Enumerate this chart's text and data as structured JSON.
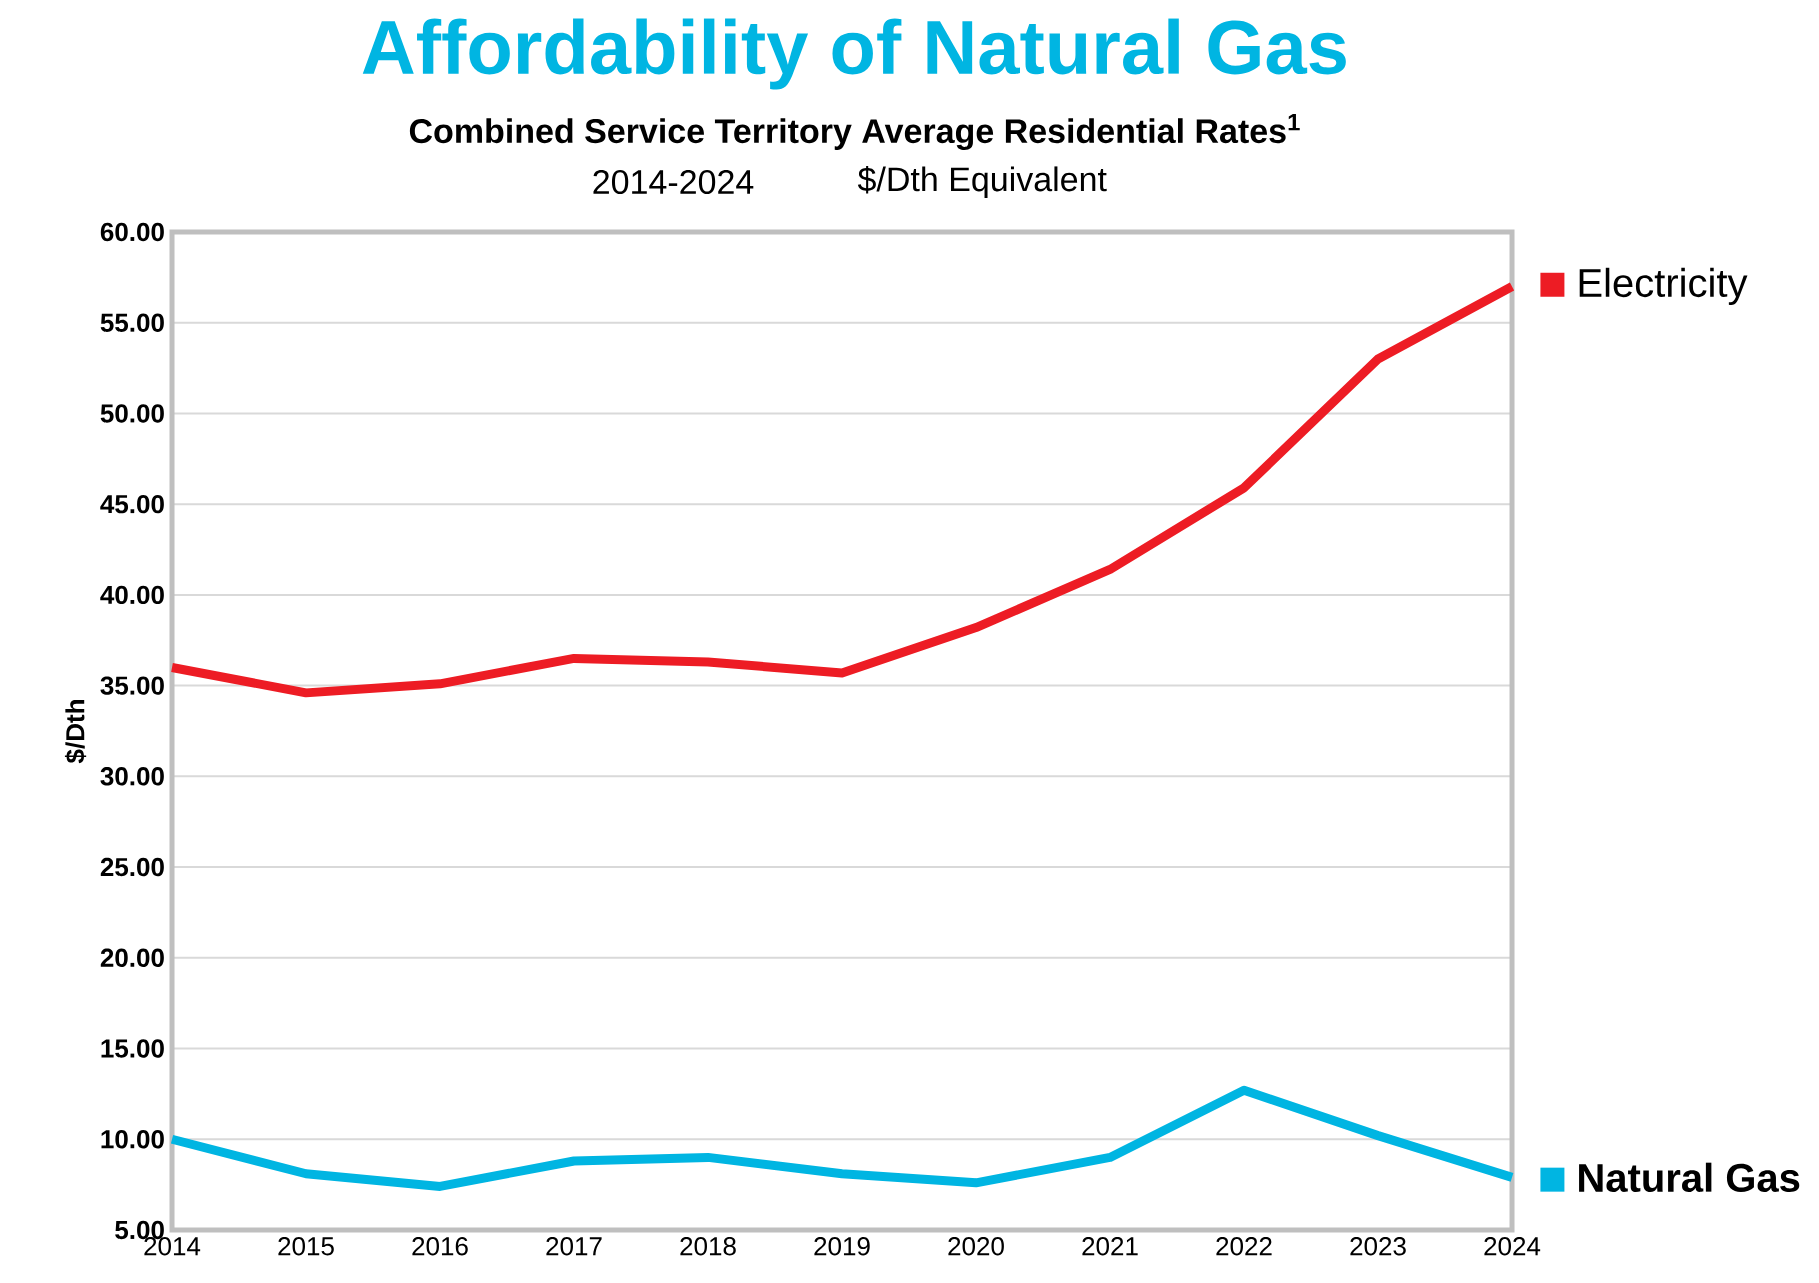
{
  "chart_data": {
    "type": "line",
    "title": "Affordability of Natural Gas",
    "subtitle": "Combined Service Territory Average Residential Rates$^{1}$",
    "annotations": [
      "2014-2024",
      "$/Dth Equivalent"
    ],
    "ylabel": "$/Dth",
    "categories": [
      "2014",
      "2015",
      "2016",
      "2017",
      "2018",
      "2019",
      "2020",
      "2021",
      "2022",
      "2023",
      "2024"
    ],
    "series": [
      {
        "name": "Electricity",
        "color": "#ed1c24",
        "values": [
          36.0,
          34.6,
          35.1,
          36.5,
          36.3,
          35.7,
          38.2,
          41.4,
          45.9,
          53.0,
          57.0
        ]
      },
      {
        "name": "**Natural Gas**",
        "color": "#00b5e2",
        "values": [
          10.0,
          8.1,
          7.4,
          8.8,
          9.0,
          8.1,
          7.6,
          9.0,
          12.7,
          10.2,
          7.9
        ]
      }
    ],
    "ylim": [
      5,
      60
    ],
    "yticks": [
      {
        "value": 5,
        "label": "5.00"
      },
      {
        "value": 10,
        "label": "10.00"
      },
      {
        "value": 15,
        "label": "15.00"
      },
      {
        "value": 20,
        "label": "20.00"
      },
      {
        "value": 25,
        "label": "25.00"
      },
      {
        "value": 30,
        "label": "30.00"
      },
      {
        "value": 35,
        "label": "35.00"
      },
      {
        "value": 40,
        "label": "40.00"
      },
      {
        "value": 45,
        "label": "45.00"
      },
      {
        "value": 50,
        "label": "50.00"
      },
      {
        "value": 55,
        "label": "55.00"
      },
      {
        "value": 60,
        "label": "60.00"
      }
    ],
    "grid": "y",
    "legend": "right",
    "marker": "none",
    "line_style": "solid"
  }
}
